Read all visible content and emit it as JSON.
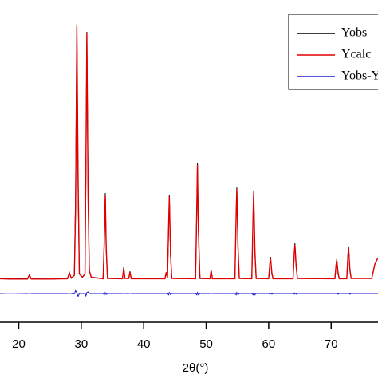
{
  "chart_data": {
    "type": "line",
    "xlabel": "2θ(°)",
    "xlim": [
      17,
      77.5
    ],
    "xticks": [
      20,
      30,
      40,
      50,
      60,
      70
    ],
    "ylim": [
      0,
      100
    ],
    "legend": "top-right",
    "x": [
      17,
      18.5,
      21.4,
      21.7,
      22.0,
      25.0,
      27.8,
      28.1,
      28.4,
      28.9,
      29.1,
      29.3,
      29.5,
      29.7,
      30.2,
      30.6,
      30.75,
      30.9,
      31.1,
      31.3,
      31.6,
      33.5,
      33.7,
      33.85,
      34.0,
      34.2,
      36.6,
      36.8,
      37.0,
      37.6,
      37.8,
      38.0,
      43.4,
      43.6,
      43.8,
      44.0,
      44.1,
      44.3,
      44.5,
      48.3,
      48.5,
      48.6,
      48.75,
      49.0,
      50.6,
      50.8,
      51.0,
      54.6,
      54.8,
      54.9,
      55.1,
      55.3,
      57.3,
      57.5,
      57.6,
      57.8,
      58.0,
      60.0,
      60.2,
      60.3,
      60.5,
      60.7,
      63.9,
      64.1,
      64.2,
      64.4,
      64.6,
      70.6,
      70.8,
      70.9,
      71.1,
      71.3,
      72.5,
      72.7,
      72.8,
      73.0,
      73.2,
      76.5,
      77.0,
      77.5
    ],
    "series": [
      {
        "name": "Yobs",
        "color": "#000000",
        "values": [
          13.6,
          13.5,
          13.5,
          14.8,
          13.5,
          13.4,
          13.6,
          15.5,
          13.8,
          14.5,
          40,
          92.6,
          40,
          15,
          14,
          15,
          45,
          90.1,
          40,
          16,
          14,
          13.6,
          25,
          40.1,
          22,
          13.6,
          13.5,
          17.1,
          13.6,
          13.6,
          15.8,
          13.5,
          13.5,
          15.5,
          13.8,
          30,
          39.6,
          20,
          13.6,
          13.5,
          35,
          49.3,
          28,
          13.6,
          13.5,
          16.3,
          13.5,
          13.5,
          33,
          41.8,
          22,
          13.6,
          13.5,
          32,
          40.6,
          21,
          13.6,
          13.5,
          18,
          20.3,
          15,
          13.5,
          13.5,
          21,
          24.5,
          17,
          13.6,
          13.5,
          18,
          19.6,
          15,
          13.5,
          13.5,
          21,
          23.3,
          16,
          13.6,
          13.6,
          18,
          20
        ]
      },
      {
        "name": "Ycalc",
        "color": "#e00000",
        "values": [
          13.5,
          13.4,
          13.4,
          14.6,
          13.4,
          13.4,
          13.5,
          15.3,
          13.7,
          14.6,
          35,
          92.0,
          45,
          15,
          14,
          15,
          50,
          89.5,
          38,
          16,
          14,
          13.5,
          26,
          39.5,
          23,
          13.6,
          13.5,
          16.8,
          13.6,
          13.6,
          15.6,
          13.5,
          13.5,
          15.5,
          13.8,
          31,
          39.0,
          21,
          13.6,
          13.5,
          36,
          48.8,
          29,
          13.6,
          13.5,
          16.0,
          13.5,
          13.5,
          34,
          41.2,
          23,
          13.6,
          13.5,
          33,
          40.2,
          22,
          13.6,
          13.5,
          18.5,
          20.0,
          15.5,
          13.5,
          13.5,
          21.5,
          24.0,
          17.5,
          13.6,
          13.5,
          18,
          19.3,
          15.5,
          13.5,
          13.5,
          21,
          23.0,
          16.5,
          13.6,
          13.6,
          18,
          20
        ]
      },
      {
        "name": "Yobs-Ycalc",
        "color": "#1a1ad0",
        "values": [
          8.9,
          9.0,
          8.9,
          9.0,
          8.9,
          8.9,
          8.9,
          9.0,
          8.9,
          8.8,
          9.8,
          9.1,
          8.0,
          8.9,
          8.9,
          8.9,
          8.2,
          9.2,
          9.4,
          8.9,
          8.9,
          8.9,
          8.5,
          9.2,
          8.6,
          8.9,
          8.9,
          9.0,
          8.9,
          8.9,
          9.0,
          8.9,
          8.9,
          8.9,
          8.9,
          8.5,
          9.2,
          8.6,
          8.9,
          8.9,
          8.5,
          9.2,
          8.5,
          8.9,
          8.9,
          9.0,
          8.9,
          8.9,
          8.5,
          9.2,
          8.5,
          8.9,
          8.9,
          8.5,
          9.1,
          8.5,
          8.9,
          8.9,
          8.7,
          9.0,
          8.7,
          8.9,
          8.9,
          8.7,
          9.1,
          8.7,
          8.9,
          8.9,
          8.9,
          9.0,
          8.7,
          8.9,
          8.9,
          8.9,
          9.0,
          8.7,
          8.9,
          8.9,
          8.9,
          8.9
        ]
      }
    ]
  }
}
